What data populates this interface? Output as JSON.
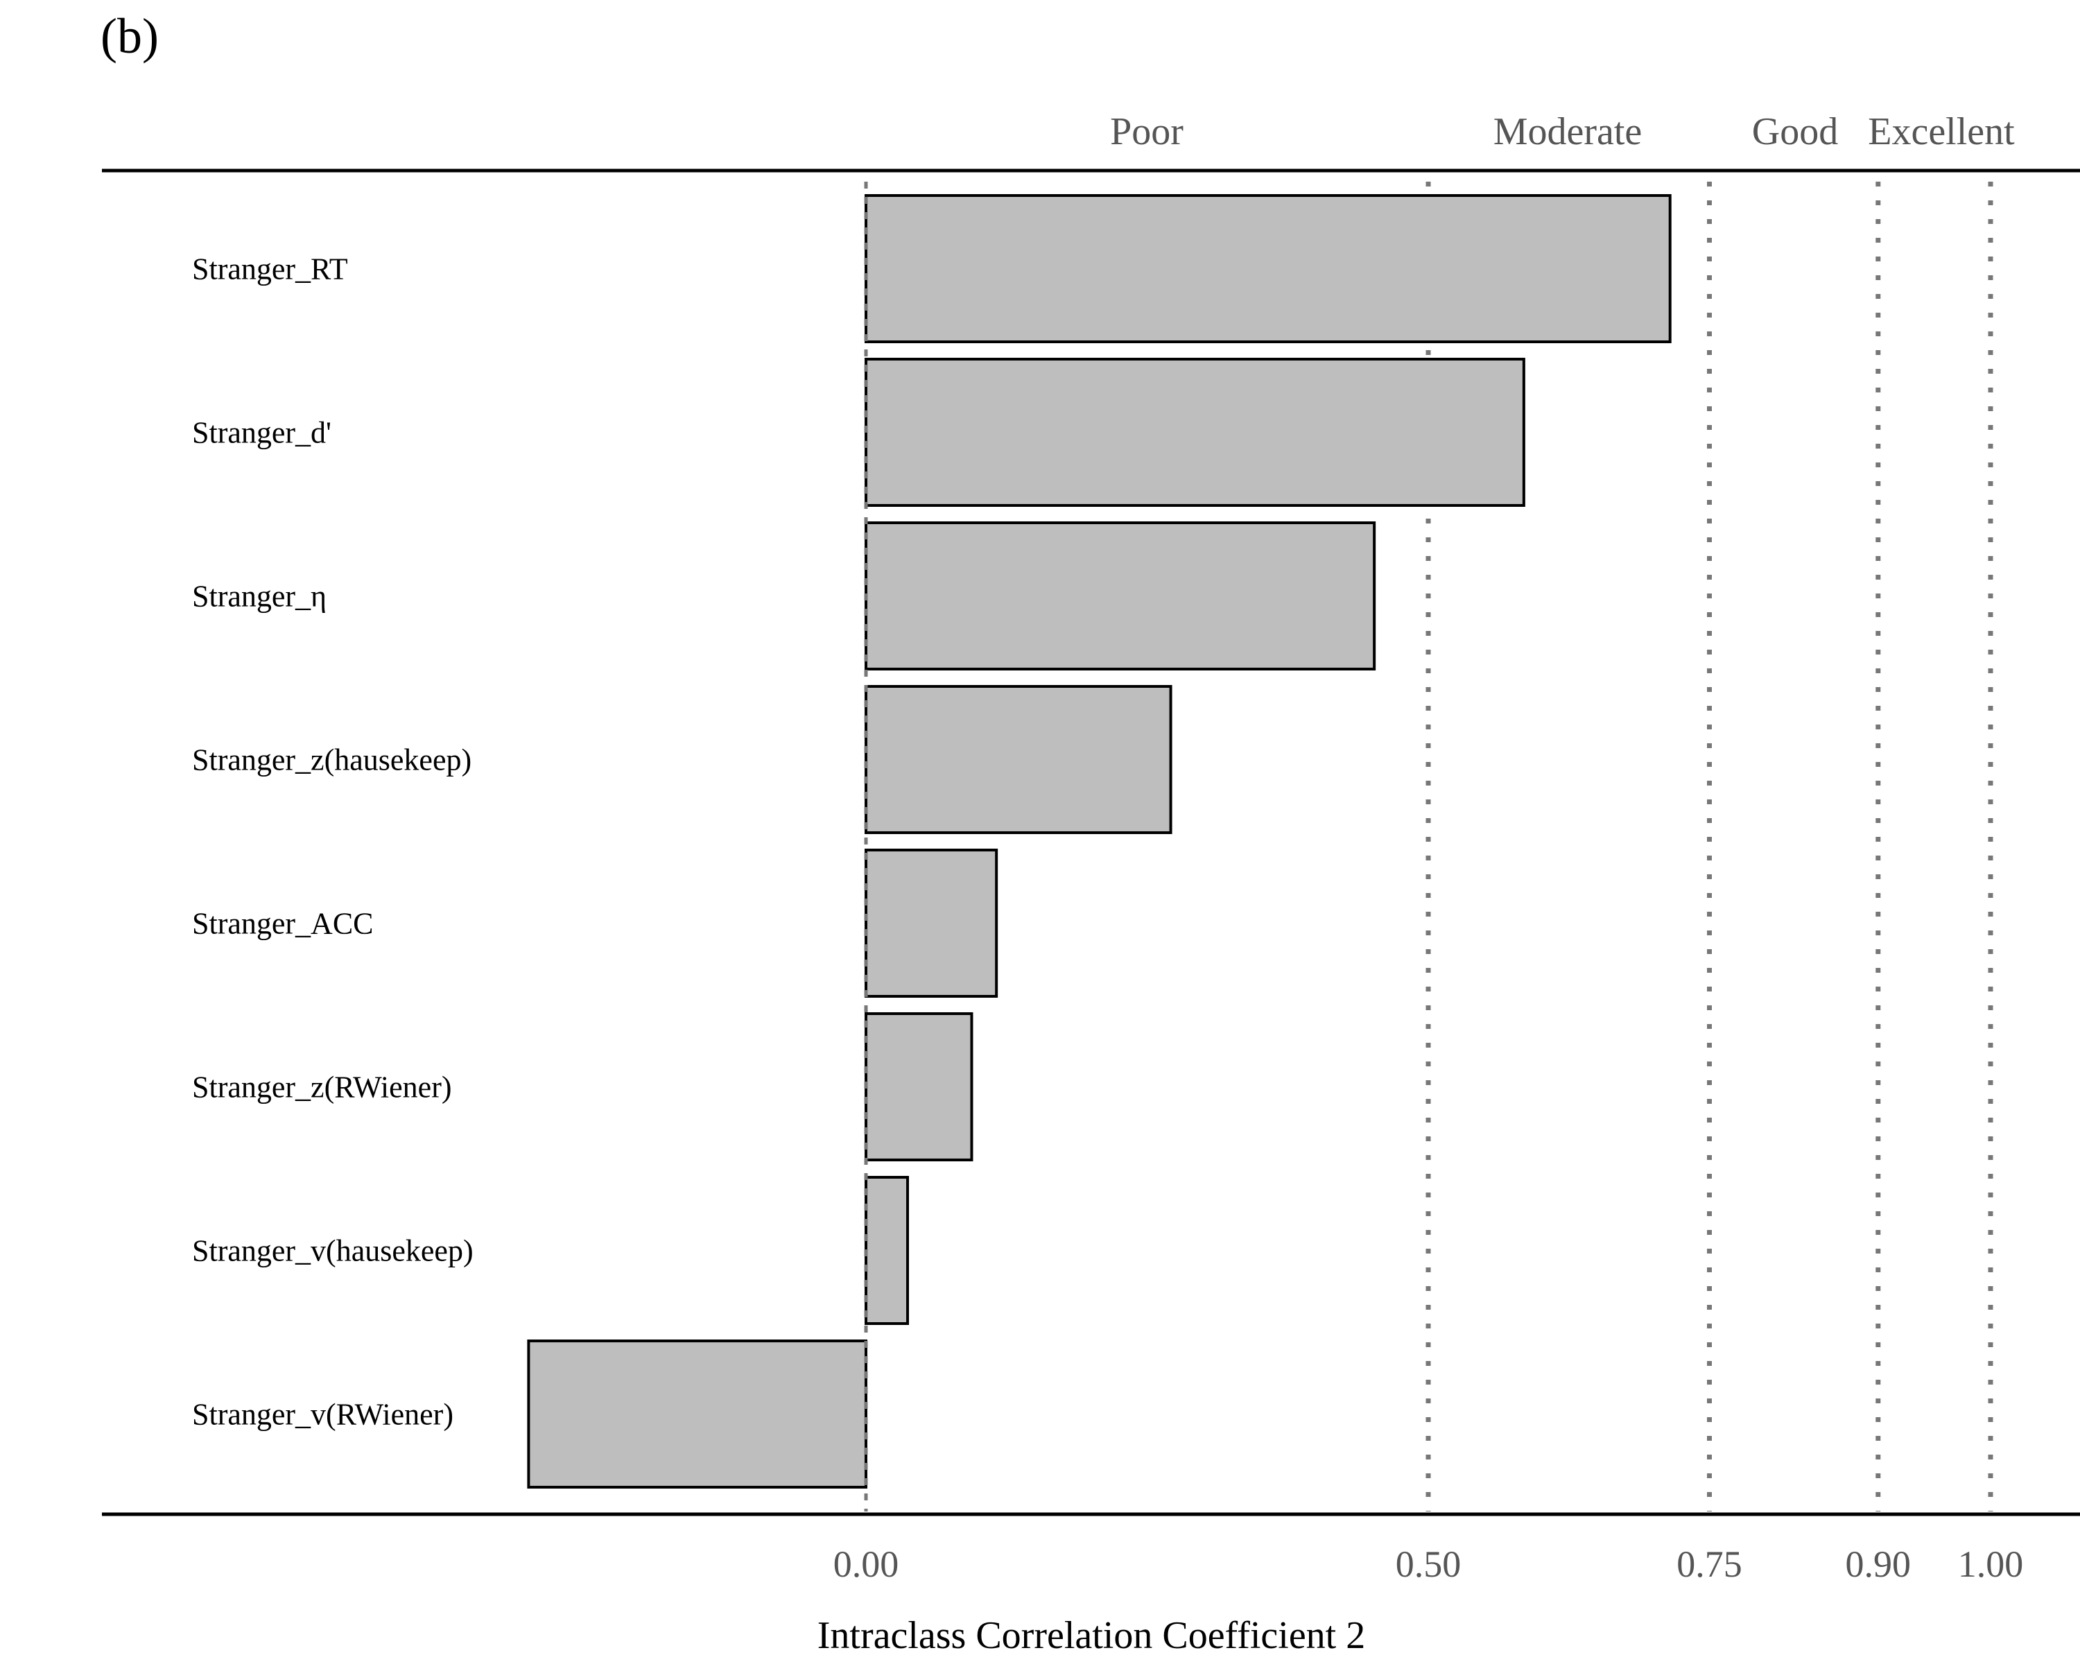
{
  "panel_label": "(b)",
  "chart_data": {
    "type": "bar",
    "orientation": "horizontal",
    "xlabel": "Intraclass Correlation Coefficient 2",
    "ylabel": "",
    "xlim": [
      -0.3,
      1.07
    ],
    "x_ticks": [
      0.0,
      0.5,
      0.75,
      0.9,
      1.0
    ],
    "x_tick_labels": [
      "0.00",
      "0.50",
      "0.75",
      "0.90",
      "1.00"
    ],
    "reference_lines": [
      0.5,
      0.75,
      0.9,
      1.0
    ],
    "bands": [
      {
        "label": "Poor",
        "center": 0.25
      },
      {
        "label": "Moderate",
        "center": 0.625
      },
      {
        "label": "Good",
        "center": 0.825
      },
      {
        "label": "Excellent",
        "center": 0.95
      }
    ],
    "categories": [
      "Stranger_RT",
      "Stranger_d'",
      "Stranger_η",
      "Stranger_z(hausekeep)",
      "Stranger_ACC",
      "Stranger_z(RWiener)",
      "Stranger_v(hausekeep)",
      "Stranger_v(RWiener)"
    ],
    "values": [
      0.715,
      0.585,
      0.452,
      0.271,
      0.116,
      0.094,
      0.037,
      -0.3
    ],
    "bar_color": "#bebebe",
    "bar_edge_color": "#000000",
    "grid": false
  }
}
